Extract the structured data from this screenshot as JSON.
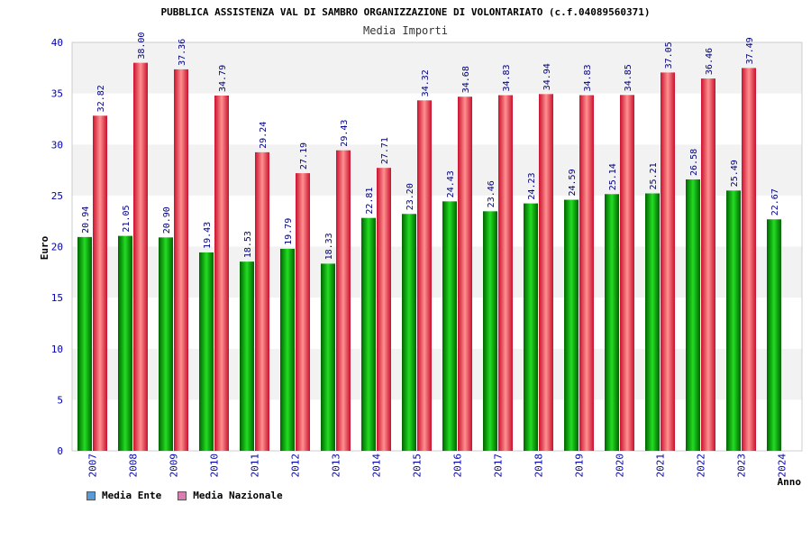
{
  "chart_data": {
    "type": "bar",
    "title": "PUBBLICA ASSISTENZA VAL DI SAMBRO ORGANIZZAZIONE DI VOLONTARIATO (c.f.04089560371)",
    "subtitle": "Media Importi",
    "xlabel": "Anno",
    "ylabel": "Euro",
    "ylim": [
      0,
      40
    ],
    "yticks": [
      "0",
      "5",
      "10",
      "15",
      "20",
      "25",
      "30",
      "35",
      "40"
    ],
    "categories": [
      "2007",
      "2008",
      "2009",
      "2010",
      "2011",
      "2012",
      "2013",
      "2014",
      "2015",
      "2016",
      "2017",
      "2018",
      "2019",
      "2020",
      "2021",
      "2022",
      "2023",
      "2024"
    ],
    "series": [
      {
        "name": "Media Ente",
        "values": [
          20.94,
          21.05,
          20.9,
          19.43,
          18.53,
          19.79,
          18.33,
          22.81,
          23.2,
          24.43,
          23.46,
          24.23,
          24.59,
          25.14,
          25.21,
          26.58,
          25.49,
          22.67
        ],
        "labels": [
          "20.94",
          "21.05",
          "20.90",
          "19.43",
          "18.53",
          "19.79",
          "18.33",
          "22.81",
          "23.20",
          "24.43",
          "23.46",
          "24.23",
          "24.59",
          "25.14",
          "25.21",
          "26.58",
          "25.49",
          "22.67"
        ]
      },
      {
        "name": "Media Nazionale",
        "values": [
          32.82,
          38.0,
          37.36,
          34.79,
          29.24,
          27.19,
          29.43,
          27.71,
          34.32,
          34.68,
          34.83,
          34.94,
          34.83,
          34.85,
          37.05,
          36.46,
          37.49,
          null
        ],
        "labels": [
          "32.82",
          "38.00",
          "37.36",
          "34.79",
          "29.24",
          "27.19",
          "29.43",
          "27.71",
          "34.32",
          "34.68",
          "34.83",
          "34.94",
          "34.83",
          "34.85",
          "37.05",
          "36.46",
          "37.49",
          null
        ]
      }
    ],
    "legend": {
      "position": "bottom-left",
      "items": [
        {
          "label": "Media Ente",
          "color": "#5b9bd5"
        },
        {
          "label": "Media Nazionale",
          "color": "#d97fb0"
        }
      ]
    },
    "colors": {
      "ente": "#00b400",
      "nazionale": "#e8202a",
      "tick_text": "#0000aa",
      "value_text": "#000080",
      "band": "#f2f2f2",
      "grid": "#dddddd"
    }
  }
}
